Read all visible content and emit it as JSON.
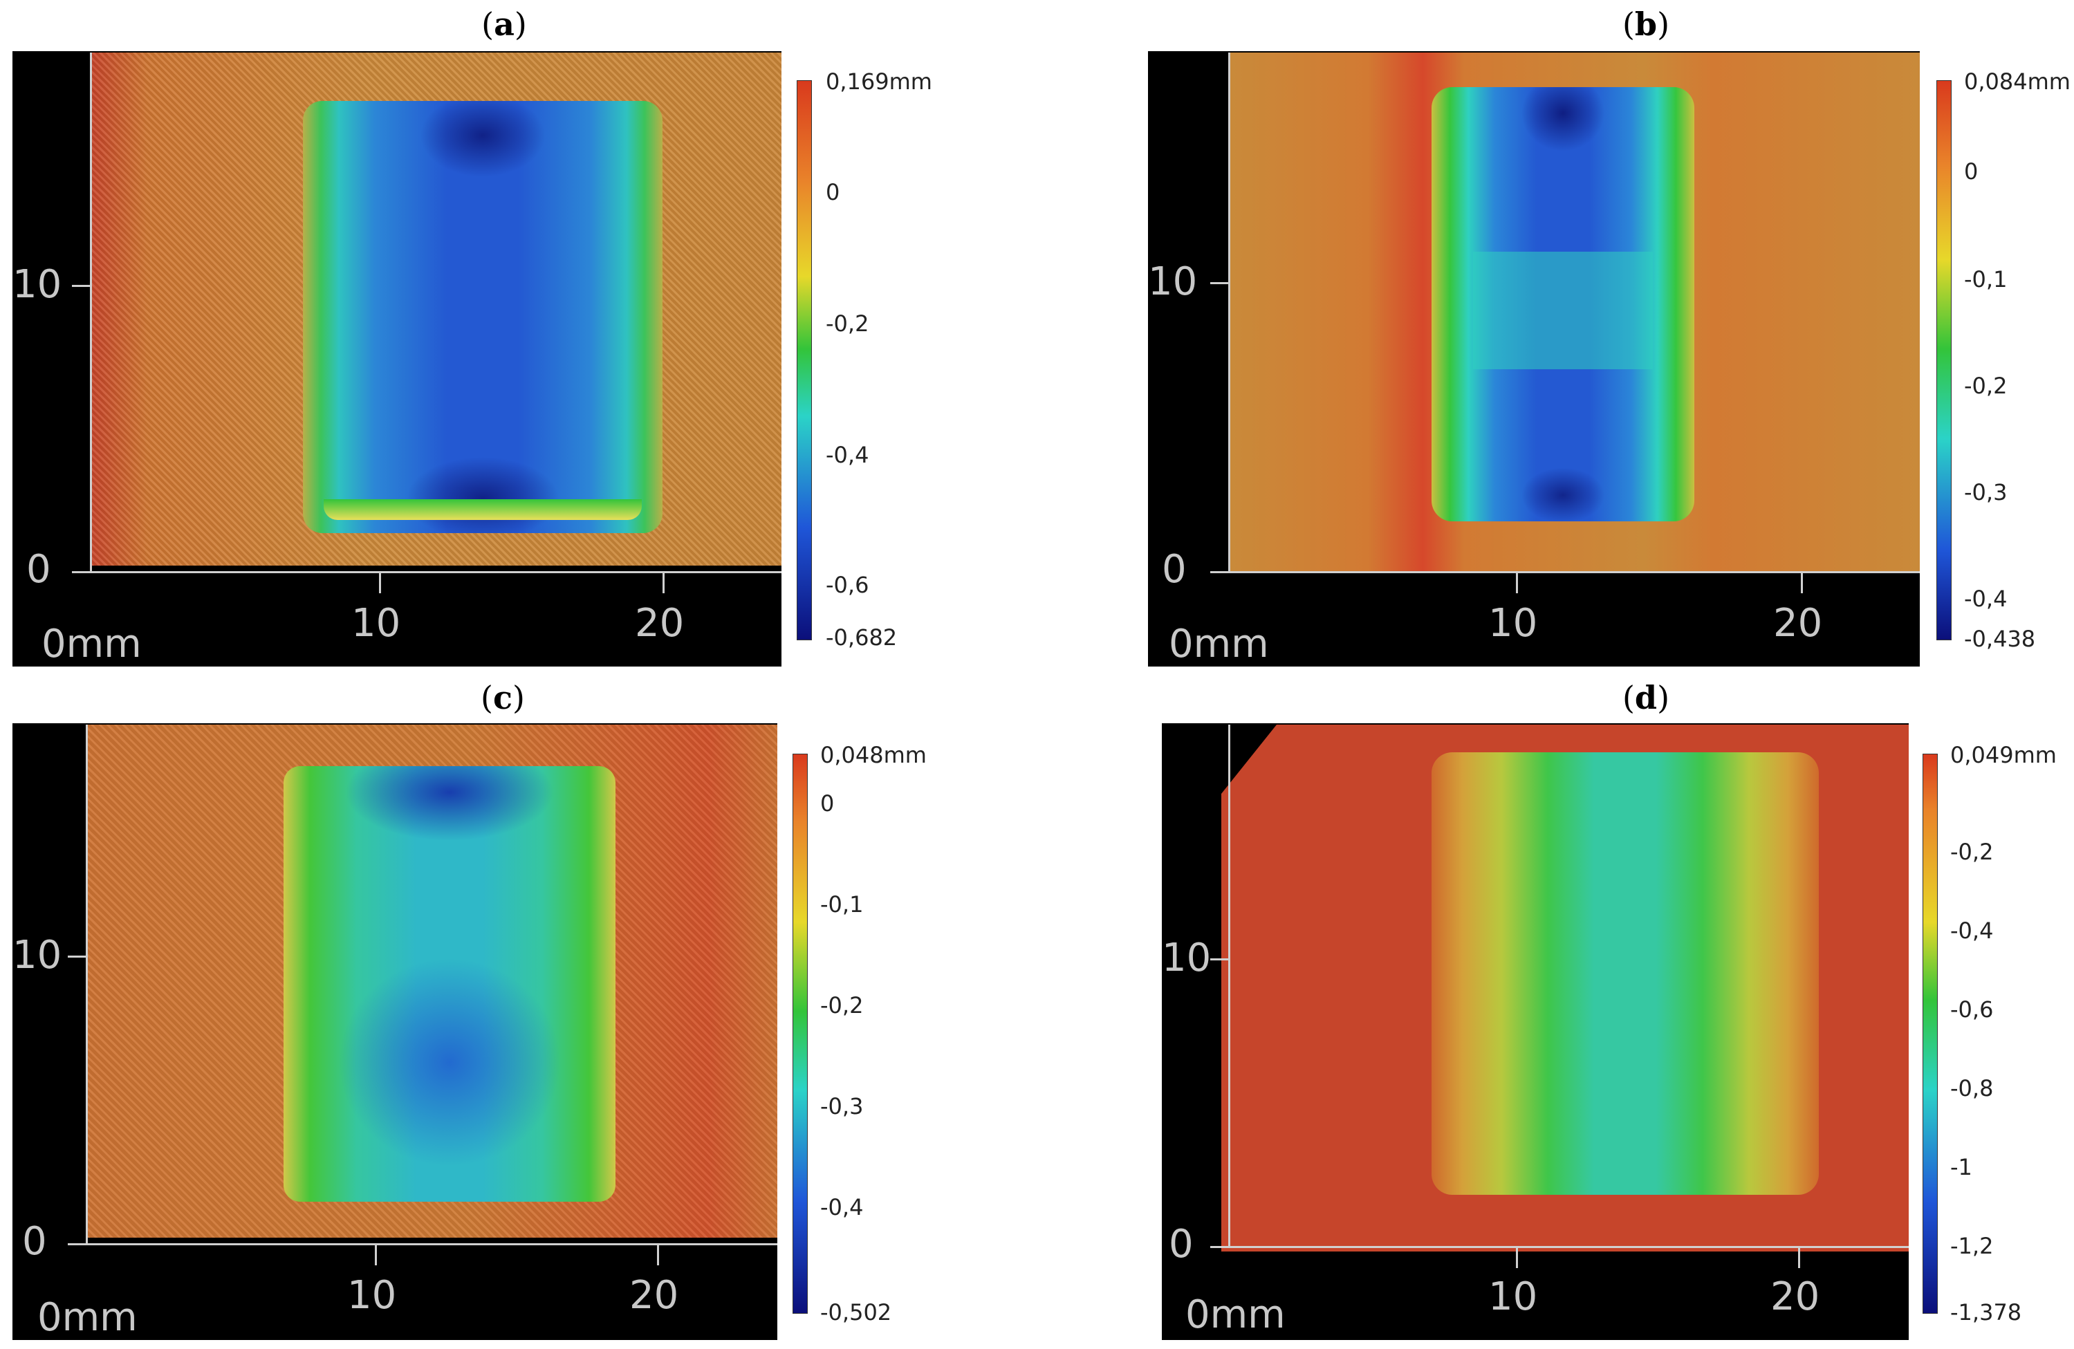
{
  "panels": [
    {
      "label": "a",
      "colorbar": [
        "0,169mm",
        "0",
        "-0,2",
        "-0,4",
        "-0,6",
        "-0,682"
      ]
    },
    {
      "label": "b",
      "colorbar": [
        "0,084mm",
        "0",
        "-0,1",
        "-0,2",
        "-0,3",
        "-0,4",
        "-0,438"
      ]
    },
    {
      "label": "c",
      "colorbar": [
        "0,048mm",
        "0",
        "-0,1",
        "-0,2",
        "-0,3",
        "-0,4",
        "-0,502"
      ]
    },
    {
      "label": "d",
      "colorbar": [
        "0,049mm",
        "-0,2",
        "-0,4",
        "-0,6",
        "-0,8",
        "-1",
        "-1,2",
        "-1,378"
      ]
    }
  ],
  "axes": {
    "y_ticks": [
      "10",
      "0"
    ],
    "x_origin": "0mm",
    "x_ticks": [
      "10",
      "20"
    ]
  },
  "colors": {
    "red": "#d93a1d",
    "orange": "#e9832a",
    "yellow": "#e7d82a",
    "green": "#33c43a",
    "cyan": "#2bd3c7",
    "blue": "#1f56d8",
    "navy": "#0b0f7a"
  }
}
